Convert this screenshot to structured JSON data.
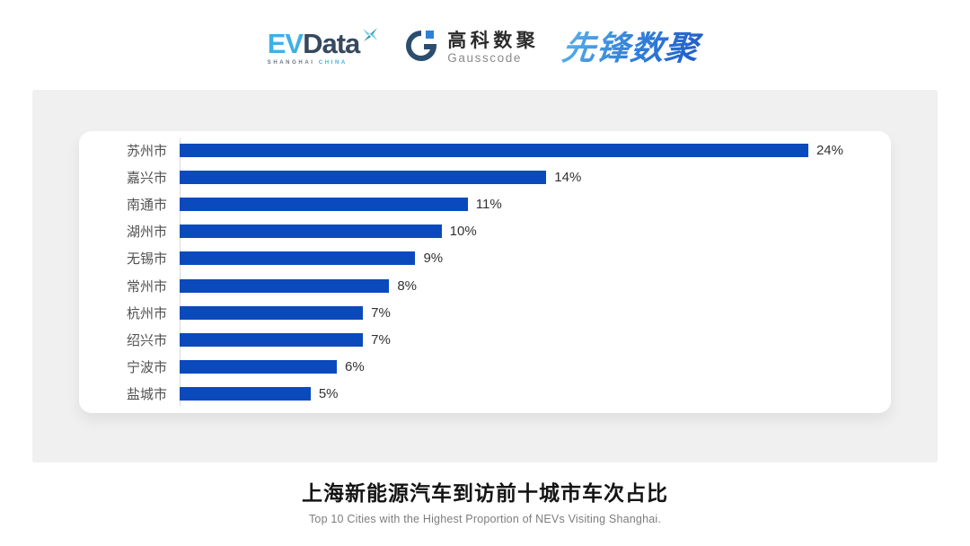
{
  "header": {
    "evdata": {
      "ev": "EV",
      "data": "Data",
      "sub_left": "SHANGHAI",
      "sub_right": "CHINA"
    },
    "gausscode": {
      "cn": "高科数聚",
      "en": "Gausscode"
    },
    "xianfeng": "先锋数聚"
  },
  "chart_data": {
    "type": "bar",
    "orientation": "horizontal",
    "categories": [
      "苏州市",
      "嘉兴市",
      "南通市",
      "湖州市",
      "无锡市",
      "常州市",
      "杭州市",
      "绍兴市",
      "宁波市",
      "盐城市"
    ],
    "values": [
      24,
      14,
      11,
      10,
      9,
      8,
      7,
      7,
      6,
      5
    ],
    "value_labels": [
      "24%",
      "14%",
      "11%",
      "10%",
      "9%",
      "8%",
      "7%",
      "7%",
      "6%",
      "5%"
    ],
    "xlim": [
      0,
      27
    ],
    "bar_color": "#0b4abd",
    "axis_line_color": "#d9d9d9",
    "grid": false,
    "legend": false,
    "title": "上海新能源汽车到访前十城市车次占比",
    "subtitle": "Top 10 Cities with the Highest Proportion of  NEVs Visiting Shanghai."
  },
  "footer": {
    "title": "上海新能源汽车到访前十城市车次占比",
    "subtitle": "Top 10 Cities with the Highest Proportion of  NEVs Visiting Shanghai."
  }
}
